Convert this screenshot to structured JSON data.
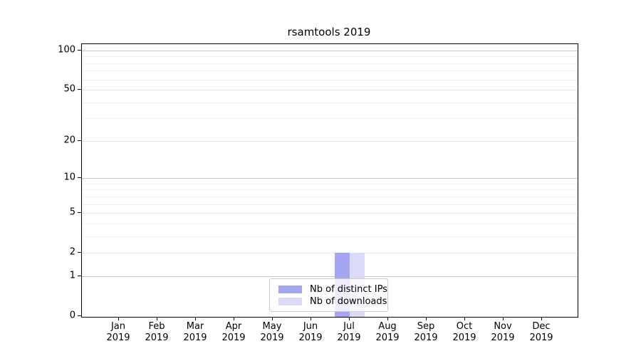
{
  "chart_data": {
    "type": "bar",
    "title": "rsamtools 2019",
    "x_axis": {
      "months": [
        "Jan",
        "Feb",
        "Mar",
        "Apr",
        "May",
        "Jun",
        "Jul",
        "Aug",
        "Sep",
        "Oct",
        "Nov",
        "Dec"
      ],
      "year": "2019"
    },
    "y_axis": {
      "scale": "log1p",
      "tick_values": [
        0,
        1,
        2,
        5,
        10,
        20,
        50,
        100
      ],
      "tick_labels": [
        "0",
        "1",
        "2",
        "5",
        "10",
        "20",
        "50",
        "100"
      ],
      "minor_gridline_values": [
        3,
        4,
        6,
        7,
        8,
        9,
        30,
        40,
        60,
        70,
        80,
        90
      ],
      "emphasized_gridline_values": [
        1,
        10,
        100
      ],
      "top_value": 112
    },
    "series": [
      {
        "name": "Nb of distinct IPs",
        "color": "#a5a5f1",
        "values": [
          0,
          0,
          0,
          0,
          0,
          0,
          2,
          0,
          0,
          0,
          0,
          0
        ]
      },
      {
        "name": "Nb of downloads",
        "color": "#dbdbf8",
        "values": [
          0,
          0,
          0,
          0,
          0,
          0,
          2,
          0,
          0,
          0,
          0,
          0
        ]
      }
    ],
    "legend_position": "bottom-center",
    "grid": true,
    "colors": {
      "background": "#ffffff",
      "axis": "#000000",
      "grid_emphasized": "#c8c8c8",
      "grid_major": "#e7e7e7",
      "grid_minor": "#efefef",
      "text": "#000000"
    }
  }
}
